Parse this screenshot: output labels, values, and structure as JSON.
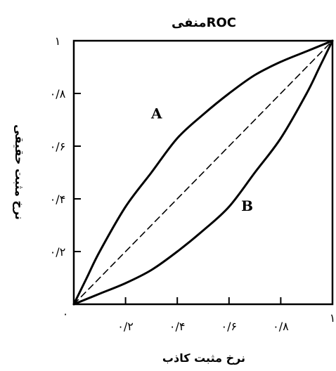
{
  "chart_data": {
    "type": "line",
    "title": "منفیROC",
    "xlabel": "نرخ مثبت کاذب",
    "ylabel": "نرخ مثبت حقیقی",
    "xlim": [
      0,
      1
    ],
    "ylim": [
      0,
      1
    ],
    "x_tick_labels": [
      "٠",
      "٠/٢",
      "٠/۴",
      "٠/۶",
      "٠/٨",
      "١"
    ],
    "x_tick_values": [
      0,
      0.2,
      0.4,
      0.6,
      0.8,
      1
    ],
    "y_tick_labels": [
      "٠/٢",
      "٠/۴",
      "٠/۶",
      "٠/٨",
      "١"
    ],
    "y_tick_values": [
      0.2,
      0.4,
      0.6,
      0.8,
      1
    ],
    "grid": false,
    "series": [
      {
        "name": "A",
        "style": "solid",
        "x": [
          0,
          0.05,
          0.1,
          0.2,
          0.3,
          0.4,
          0.5,
          0.6,
          0.7,
          0.8,
          0.9,
          1.0
        ],
        "y": [
          0,
          0.1,
          0.2,
          0.37,
          0.5,
          0.63,
          0.72,
          0.8,
          0.87,
          0.92,
          0.96,
          1.0
        ]
      },
      {
        "name": "B",
        "style": "solid",
        "x": [
          0,
          0.1,
          0.2,
          0.3,
          0.4,
          0.5,
          0.6,
          0.7,
          0.8,
          0.9,
          0.95,
          1.0
        ],
        "y": [
          0,
          0.04,
          0.08,
          0.13,
          0.2,
          0.28,
          0.37,
          0.5,
          0.63,
          0.8,
          0.9,
          1.0
        ]
      },
      {
        "name": "",
        "style": "dashed",
        "x": [
          0,
          1
        ],
        "y": [
          0,
          1
        ]
      }
    ],
    "annotations": [
      {
        "text": "A",
        "x": 0.32,
        "y": 0.72
      },
      {
        "text": "B",
        "x": 0.67,
        "y": 0.37
      }
    ],
    "colors": {
      "line": "#000000",
      "background": "#ffffff"
    }
  }
}
